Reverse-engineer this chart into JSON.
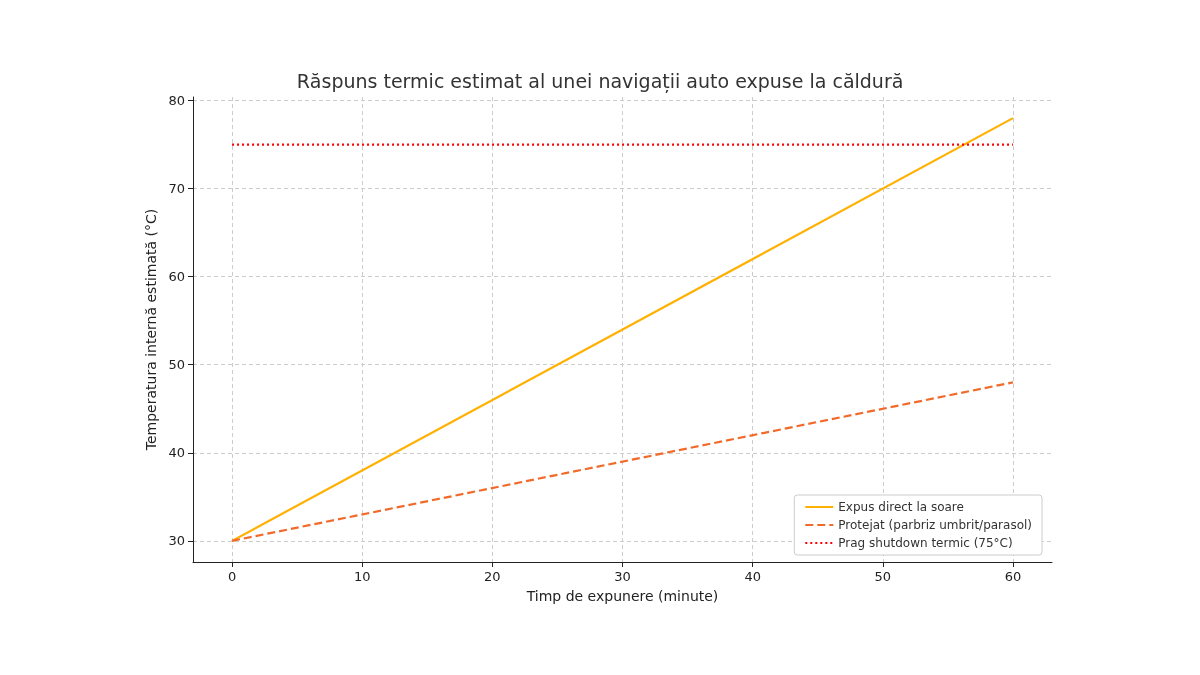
{
  "chart_data": {
    "type": "line",
    "title": "Răspuns termic estimat al unei navigații auto expuse la căldură",
    "xlabel": "Timp de expunere (minute)",
    "ylabel": "Temperatura internă estimată (°C)",
    "x": [
      0,
      60
    ],
    "xlim": [
      -3,
      63
    ],
    "xticks": [
      0,
      10,
      20,
      30,
      40,
      50,
      60
    ],
    "ylim": [
      27.6,
      80.4
    ],
    "yticks": [
      30,
      40,
      50,
      60,
      70,
      80
    ],
    "grid": true,
    "legend": "bottom right",
    "marker": "none",
    "series": [
      {
        "name": "Expus direct la soare",
        "color": "#ffb000",
        "values": [
          30,
          78
        ],
        "line_style": "solid"
      },
      {
        "name": "Protejat (parbriz umbrit/parasol)",
        "color": "#f26a2a",
        "values": [
          30,
          48
        ],
        "line_style": "dashed"
      },
      {
        "name": "Prag shutdown termic (75°C)",
        "color": "#ff0000",
        "values": [
          75,
          75
        ],
        "line_style": "dotted"
      }
    ]
  }
}
